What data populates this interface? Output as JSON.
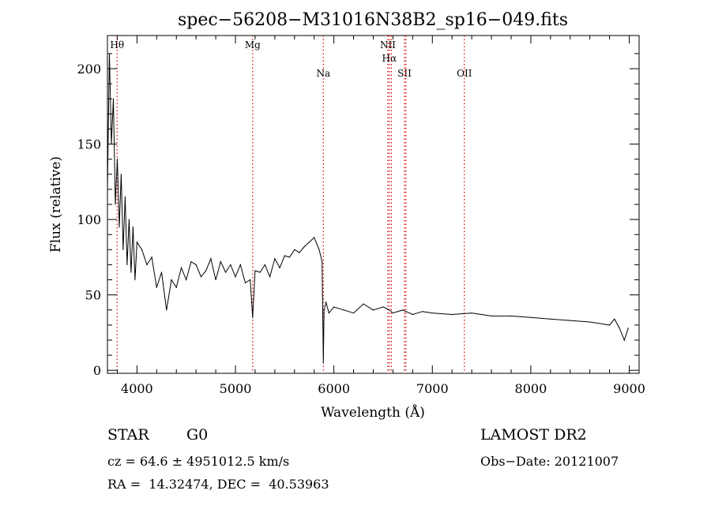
{
  "chart_data": {
    "type": "line",
    "title": "spec−56208−M31016N38B2_sp16−049.fits",
    "xlabel": "Wavelength (Å)",
    "ylabel": "Flux (relative)",
    "xlim": [
      3700,
      9100
    ],
    "ylim": [
      -2,
      222
    ],
    "x_ticks": [
      4000,
      5000,
      6000,
      7000,
      8000,
      9000
    ],
    "y_ticks": [
      0,
      50,
      100,
      150,
      200
    ],
    "grid": false,
    "line_color": "#000000",
    "spectral_lines": [
      {
        "label": "Hθ",
        "x": 3798,
        "level": "top"
      },
      {
        "label": "Mg",
        "x": 5175,
        "level": "top"
      },
      {
        "label": "Na",
        "x": 5893,
        "level": "low"
      },
      {
        "label": "NII",
        "x": 6548,
        "level": "top"
      },
      {
        "label": "Hα",
        "x": 6563,
        "level": "mid"
      },
      {
        "label": "NII",
        "x": 6584,
        "level": "none"
      },
      {
        "label": "SII",
        "x": 6717,
        "level": "low"
      },
      {
        "label": "SII",
        "x": 6731,
        "level": "none"
      },
      {
        "label": "OII",
        "x": 7325,
        "level": "low"
      }
    ],
    "spectral_line_color": "#d40000",
    "series": [
      {
        "x": [
          3700,
          3720,
          3740,
          3760,
          3780,
          3800,
          3820,
          3840,
          3860,
          3880,
          3900,
          3920,
          3940,
          3960,
          3980,
          4000,
          4050,
          4100,
          4150,
          4200,
          4250,
          4300,
          4350,
          4400,
          4450,
          4500,
          4550,
          4600,
          4650,
          4700,
          4750,
          4800,
          4850,
          4900,
          4950,
          5000,
          5050,
          5100,
          5150,
          5175,
          5200,
          5250,
          5300,
          5350,
          5400,
          5450,
          5500,
          5550,
          5600,
          5650,
          5700,
          5750,
          5800,
          5850,
          5880,
          5893,
          5900,
          5920,
          5950,
          6000,
          6100,
          6200,
          6300,
          6400,
          6500,
          6563,
          6600,
          6700,
          6800,
          6900,
          7000,
          7200,
          7400,
          7600,
          7800,
          8000,
          8200,
          8400,
          8600,
          8800,
          8850,
          8900,
          8950,
          8990
        ],
        "y": [
          120,
          210,
          150,
          180,
          110,
          140,
          95,
          130,
          80,
          115,
          70,
          100,
          65,
          95,
          60,
          85,
          80,
          70,
          75,
          55,
          65,
          40,
          60,
          55,
          68,
          60,
          72,
          70,
          62,
          66,
          74,
          60,
          72,
          65,
          70,
          62,
          70,
          58,
          60,
          35,
          66,
          65,
          70,
          62,
          74,
          68,
          76,
          75,
          80,
          78,
          82,
          85,
          88,
          80,
          72,
          5,
          40,
          45,
          38,
          42,
          40,
          38,
          44,
          40,
          42,
          40,
          38,
          40,
          37,
          39,
          38,
          37,
          38,
          36,
          36,
          35,
          34,
          33,
          32,
          30,
          34,
          28,
          20,
          28
        ]
      }
    ]
  },
  "footer": {
    "object": "STAR",
    "subclass": "G0",
    "survey": "LAMOST DR2",
    "cz": "cz = 64.6 ± 4951012.5 km/s",
    "obs_date": "Obs−Date: 20121007",
    "coords": "RA =  14.32474, DEC =  40.53963"
  }
}
